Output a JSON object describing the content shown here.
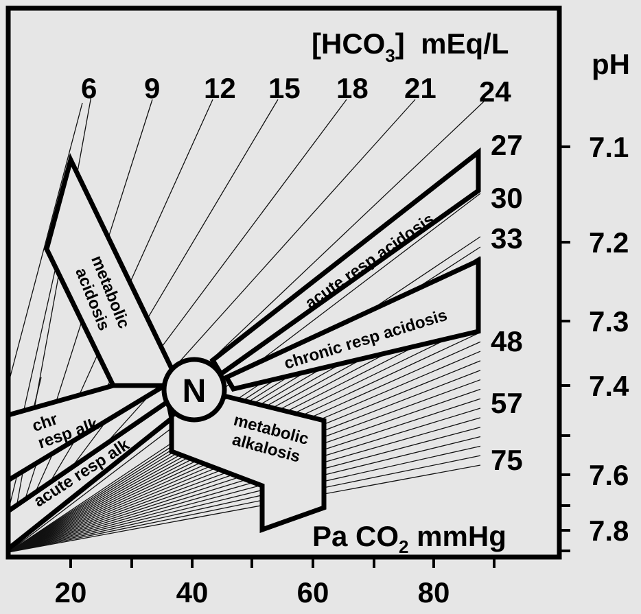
{
  "titles": {
    "hco3_prefix": "[HCO",
    "hco3_sub": "3",
    "hco3_suffix": "]  mEq/L",
    "ph": "pH",
    "paco2_prefix": "Pa CO",
    "paco2_sub": "2",
    "paco2_suffix": " mmHg"
  },
  "hco3_labels": [
    "6",
    "9",
    "12",
    "15",
    "18",
    "21",
    "24",
    "27",
    "30",
    "33",
    "48",
    "57",
    "75"
  ],
  "ph_labels": [
    "7.1",
    "7.2",
    "7.3",
    "7.4",
    "7.6",
    "7.8"
  ],
  "x_axis_labels": [
    "20",
    "40",
    "60",
    "80"
  ],
  "regions": {
    "metabolic_acidosis": [
      "metabolic",
      "acidosis"
    ],
    "acute_resp_acidosis": "acute resp acidosis",
    "chronic_resp_acidosis": "chronic resp acidosis",
    "chr_resp_alk": [
      "chr",
      "resp alk"
    ],
    "acute_resp_alk": "acute resp alk",
    "metabolic_alkalosis": [
      "metabolic",
      "alkalosis"
    ],
    "normal": "N"
  },
  "colors": {
    "background": "#e6e6e6",
    "ink": "#000000",
    "region_fill": "#e6e6e6"
  }
}
